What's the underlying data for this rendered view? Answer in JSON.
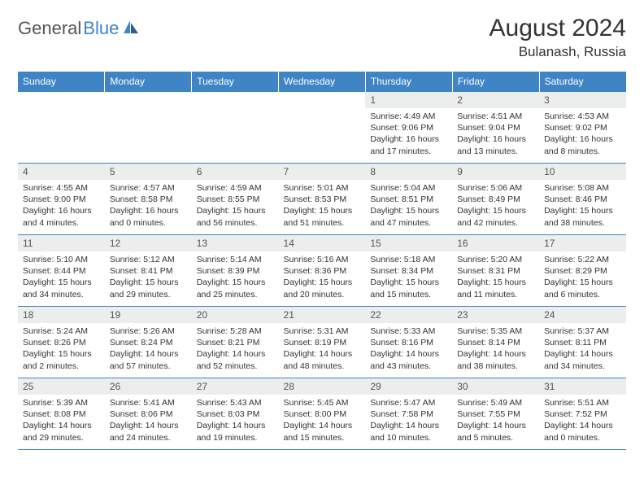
{
  "brand": {
    "part1": "General",
    "part2": "Blue"
  },
  "title": "August 2024",
  "location": "Bulanash, Russia",
  "colors": {
    "accent": "#3f85c6",
    "header_bg": "#3f85c6",
    "daynum_bg": "#eceded",
    "text": "#333333",
    "muted": "#555555",
    "white": "#ffffff"
  },
  "weekdays": [
    "Sunday",
    "Monday",
    "Tuesday",
    "Wednesday",
    "Thursday",
    "Friday",
    "Saturday"
  ],
  "weeks": [
    [
      null,
      null,
      null,
      null,
      {
        "num": "1",
        "sunrise": "Sunrise: 4:49 AM",
        "sunset": "Sunset: 9:06 PM",
        "daylight": "Daylight: 16 hours and 17 minutes."
      },
      {
        "num": "2",
        "sunrise": "Sunrise: 4:51 AM",
        "sunset": "Sunset: 9:04 PM",
        "daylight": "Daylight: 16 hours and 13 minutes."
      },
      {
        "num": "3",
        "sunrise": "Sunrise: 4:53 AM",
        "sunset": "Sunset: 9:02 PM",
        "daylight": "Daylight: 16 hours and 8 minutes."
      }
    ],
    [
      {
        "num": "4",
        "sunrise": "Sunrise: 4:55 AM",
        "sunset": "Sunset: 9:00 PM",
        "daylight": "Daylight: 16 hours and 4 minutes."
      },
      {
        "num": "5",
        "sunrise": "Sunrise: 4:57 AM",
        "sunset": "Sunset: 8:58 PM",
        "daylight": "Daylight: 16 hours and 0 minutes."
      },
      {
        "num": "6",
        "sunrise": "Sunrise: 4:59 AM",
        "sunset": "Sunset: 8:55 PM",
        "daylight": "Daylight: 15 hours and 56 minutes."
      },
      {
        "num": "7",
        "sunrise": "Sunrise: 5:01 AM",
        "sunset": "Sunset: 8:53 PM",
        "daylight": "Daylight: 15 hours and 51 minutes."
      },
      {
        "num": "8",
        "sunrise": "Sunrise: 5:04 AM",
        "sunset": "Sunset: 8:51 PM",
        "daylight": "Daylight: 15 hours and 47 minutes."
      },
      {
        "num": "9",
        "sunrise": "Sunrise: 5:06 AM",
        "sunset": "Sunset: 8:49 PM",
        "daylight": "Daylight: 15 hours and 42 minutes."
      },
      {
        "num": "10",
        "sunrise": "Sunrise: 5:08 AM",
        "sunset": "Sunset: 8:46 PM",
        "daylight": "Daylight: 15 hours and 38 minutes."
      }
    ],
    [
      {
        "num": "11",
        "sunrise": "Sunrise: 5:10 AM",
        "sunset": "Sunset: 8:44 PM",
        "daylight": "Daylight: 15 hours and 34 minutes."
      },
      {
        "num": "12",
        "sunrise": "Sunrise: 5:12 AM",
        "sunset": "Sunset: 8:41 PM",
        "daylight": "Daylight: 15 hours and 29 minutes."
      },
      {
        "num": "13",
        "sunrise": "Sunrise: 5:14 AM",
        "sunset": "Sunset: 8:39 PM",
        "daylight": "Daylight: 15 hours and 25 minutes."
      },
      {
        "num": "14",
        "sunrise": "Sunrise: 5:16 AM",
        "sunset": "Sunset: 8:36 PM",
        "daylight": "Daylight: 15 hours and 20 minutes."
      },
      {
        "num": "15",
        "sunrise": "Sunrise: 5:18 AM",
        "sunset": "Sunset: 8:34 PM",
        "daylight": "Daylight: 15 hours and 15 minutes."
      },
      {
        "num": "16",
        "sunrise": "Sunrise: 5:20 AM",
        "sunset": "Sunset: 8:31 PM",
        "daylight": "Daylight: 15 hours and 11 minutes."
      },
      {
        "num": "17",
        "sunrise": "Sunrise: 5:22 AM",
        "sunset": "Sunset: 8:29 PM",
        "daylight": "Daylight: 15 hours and 6 minutes."
      }
    ],
    [
      {
        "num": "18",
        "sunrise": "Sunrise: 5:24 AM",
        "sunset": "Sunset: 8:26 PM",
        "daylight": "Daylight: 15 hours and 2 minutes."
      },
      {
        "num": "19",
        "sunrise": "Sunrise: 5:26 AM",
        "sunset": "Sunset: 8:24 PM",
        "daylight": "Daylight: 14 hours and 57 minutes."
      },
      {
        "num": "20",
        "sunrise": "Sunrise: 5:28 AM",
        "sunset": "Sunset: 8:21 PM",
        "daylight": "Daylight: 14 hours and 52 minutes."
      },
      {
        "num": "21",
        "sunrise": "Sunrise: 5:31 AM",
        "sunset": "Sunset: 8:19 PM",
        "daylight": "Daylight: 14 hours and 48 minutes."
      },
      {
        "num": "22",
        "sunrise": "Sunrise: 5:33 AM",
        "sunset": "Sunset: 8:16 PM",
        "daylight": "Daylight: 14 hours and 43 minutes."
      },
      {
        "num": "23",
        "sunrise": "Sunrise: 5:35 AM",
        "sunset": "Sunset: 8:14 PM",
        "daylight": "Daylight: 14 hours and 38 minutes."
      },
      {
        "num": "24",
        "sunrise": "Sunrise: 5:37 AM",
        "sunset": "Sunset: 8:11 PM",
        "daylight": "Daylight: 14 hours and 34 minutes."
      }
    ],
    [
      {
        "num": "25",
        "sunrise": "Sunrise: 5:39 AM",
        "sunset": "Sunset: 8:08 PM",
        "daylight": "Daylight: 14 hours and 29 minutes."
      },
      {
        "num": "26",
        "sunrise": "Sunrise: 5:41 AM",
        "sunset": "Sunset: 8:06 PM",
        "daylight": "Daylight: 14 hours and 24 minutes."
      },
      {
        "num": "27",
        "sunrise": "Sunrise: 5:43 AM",
        "sunset": "Sunset: 8:03 PM",
        "daylight": "Daylight: 14 hours and 19 minutes."
      },
      {
        "num": "28",
        "sunrise": "Sunrise: 5:45 AM",
        "sunset": "Sunset: 8:00 PM",
        "daylight": "Daylight: 14 hours and 15 minutes."
      },
      {
        "num": "29",
        "sunrise": "Sunrise: 5:47 AM",
        "sunset": "Sunset: 7:58 PM",
        "daylight": "Daylight: 14 hours and 10 minutes."
      },
      {
        "num": "30",
        "sunrise": "Sunrise: 5:49 AM",
        "sunset": "Sunset: 7:55 PM",
        "daylight": "Daylight: 14 hours and 5 minutes."
      },
      {
        "num": "31",
        "sunrise": "Sunrise: 5:51 AM",
        "sunset": "Sunset: 7:52 PM",
        "daylight": "Daylight: 14 hours and 0 minutes."
      }
    ]
  ]
}
